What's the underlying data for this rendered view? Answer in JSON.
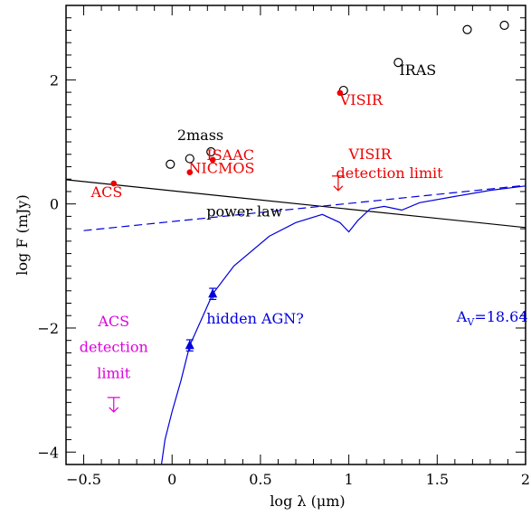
{
  "chart_data": {
    "type": "scatter",
    "xlabel": "log λ (μm)",
    "ylabel": "log F (mJy)",
    "xlim": [
      -0.6,
      2.0
    ],
    "ylim": [
      -4.2,
      3.2
    ],
    "x_ticks": [
      {
        "value": -0.5,
        "label": "−0.5"
      },
      {
        "value": 0,
        "label": "0"
      },
      {
        "value": 0.5,
        "label": "0.5"
      },
      {
        "value": 1,
        "label": "1"
      },
      {
        "value": 1.5,
        "label": "1.5"
      },
      {
        "value": 2,
        "label": "2"
      }
    ],
    "y_ticks": [
      {
        "value": -4,
        "label": "−4"
      },
      {
        "value": -2,
        "label": "−2"
      },
      {
        "value": 0,
        "label": "0"
      },
      {
        "value": 2,
        "label": "2"
      }
    ],
    "grid": false,
    "colors": {
      "data": "#ee0000",
      "model": "#0000dd",
      "upper_limit": "#dd00dd",
      "axes": "#000000"
    },
    "series": [
      {
        "marker": "open-circle",
        "color": "#000000",
        "points": [
          {
            "x": -0.01,
            "y": 0.64
          },
          {
            "x": 0.1,
            "y": 0.73
          },
          {
            "x": 0.22,
            "y": 0.84
          },
          {
            "x": 0.97,
            "y": 1.83
          },
          {
            "x": 1.28,
            "y": 2.28
          },
          {
            "x": 1.67,
            "y": 2.81
          },
          {
            "x": 1.88,
            "y": 2.88
          }
        ]
      },
      {
        "marker": "filled-circle",
        "color": "#ee0000",
        "points": [
          {
            "x": -0.33,
            "y": 0.33
          },
          {
            "x": 0.1,
            "y": 0.51
          },
          {
            "x": 0.23,
            "y": 0.71
          },
          {
            "x": 0.95,
            "y": 1.79
          }
        ]
      },
      {
        "marker": "filled-triangle",
        "color": "#0000dd",
        "points": [
          {
            "x": 0.1,
            "y": -2.28,
            "err": 0.09
          },
          {
            "x": 0.23,
            "y": -1.45,
            "err": 0.09
          }
        ]
      },
      {
        "line": "solid",
        "color": "#000000",
        "points": [
          {
            "x": -0.6,
            "y": 0.39
          },
          {
            "x": 2.0,
            "y": -0.38
          }
        ]
      },
      {
        "line": "dashed",
        "color": "#0000dd",
        "points": [
          {
            "x": -0.5,
            "y": -0.43
          },
          {
            "x": 2.0,
            "y": 0.3
          }
        ]
      },
      {
        "line": "solid",
        "color": "#0000dd",
        "points": [
          {
            "x": -0.06,
            "y": -4.2
          },
          {
            "x": -0.04,
            "y": -3.8
          },
          {
            "x": 0.0,
            "y": -3.35
          },
          {
            "x": 0.05,
            "y": -2.85
          },
          {
            "x": 0.1,
            "y": -2.28
          },
          {
            "x": 0.16,
            "y": -1.9
          },
          {
            "x": 0.23,
            "y": -1.45
          },
          {
            "x": 0.35,
            "y": -1.0
          },
          {
            "x": 0.55,
            "y": -0.52
          },
          {
            "x": 0.7,
            "y": -0.3
          },
          {
            "x": 0.85,
            "y": -0.17
          },
          {
            "x": 0.95,
            "y": -0.3
          },
          {
            "x": 1.0,
            "y": -0.45
          },
          {
            "x": 1.05,
            "y": -0.27
          },
          {
            "x": 1.12,
            "y": -0.08
          },
          {
            "x": 1.2,
            "y": -0.04
          },
          {
            "x": 1.3,
            "y": -0.1
          },
          {
            "x": 1.4,
            "y": 0.02
          },
          {
            "x": 1.6,
            "y": 0.12
          },
          {
            "x": 1.8,
            "y": 0.22
          },
          {
            "x": 2.0,
            "y": 0.29
          }
        ]
      }
    ],
    "upper_limits": [
      {
        "x": 0.94,
        "y": 0.45,
        "color": "#ee0000"
      },
      {
        "x": -0.33,
        "y": -3.12,
        "color": "#dd00dd"
      }
    ],
    "annotations": [
      {
        "text": "IRAS",
        "x": 1.39,
        "y": 2.08,
        "color": "#000000",
        "anchor": "middle"
      },
      {
        "text": "VISIR",
        "x": 1.07,
        "y": 1.6,
        "color": "#ee0000",
        "anchor": "middle"
      },
      {
        "text": "2mass",
        "x": 0.16,
        "y": 1.03,
        "color": "#000000",
        "anchor": "middle"
      },
      {
        "text": "ISAAC",
        "x": 0.33,
        "y": 0.71,
        "color": "#ee0000",
        "anchor": "middle"
      },
      {
        "text": "NICMOS",
        "x": 0.28,
        "y": 0.5,
        "color": "#ee0000",
        "anchor": "middle"
      },
      {
        "text": "ACS",
        "x": -0.37,
        "y": 0.11,
        "color": "#ee0000",
        "anchor": "middle"
      },
      {
        "text": "VISIR",
        "x": 1.12,
        "y": 0.72,
        "color": "#ee0000",
        "anchor": "middle"
      },
      {
        "text": "detection limit",
        "x": 1.23,
        "y": 0.42,
        "color": "#ee0000",
        "anchor": "middle"
      },
      {
        "text": "power law",
        "x": 0.41,
        "y": -0.2,
        "color": "#000000",
        "anchor": "middle"
      },
      {
        "text": "hidden AGN?",
        "x": 0.47,
        "y": -1.93,
        "color": "#0000dd",
        "anchor": "middle"
      },
      {
        "text": "ACS",
        "x": -0.33,
        "y": -1.97,
        "color": "#dd00dd",
        "anchor": "middle"
      },
      {
        "text": "detection",
        "x": -0.33,
        "y": -2.39,
        "color": "#dd00dd",
        "anchor": "middle"
      },
      {
        "text": "limit",
        "x": -0.33,
        "y": -2.81,
        "color": "#dd00dd",
        "anchor": "middle"
      }
    ],
    "av_label": {
      "main": "A",
      "sub": "V",
      "rest": "=18.64",
      "x": 1.61,
      "y": -1.9,
      "color": "#0000dd"
    }
  }
}
